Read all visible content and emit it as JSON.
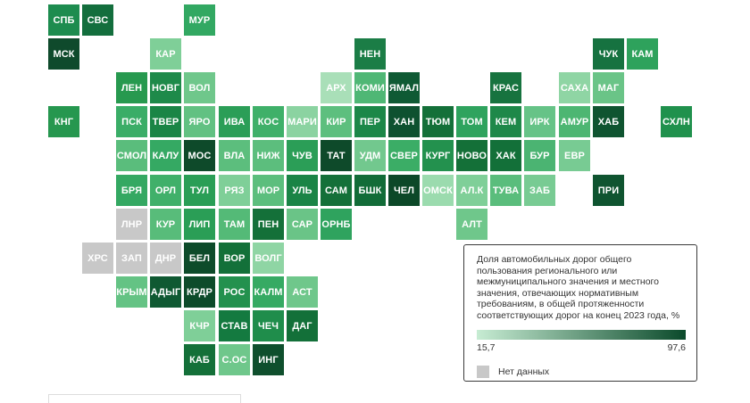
{
  "colors": {
    "scale_low": "#c7ecd3",
    "scale_high": "#0b4a2b",
    "no_data": "#c8c8c8",
    "text_on_tile": "#ffffff"
  },
  "legend": {
    "title": "Доля автомобильных дорог общего пользования регионального или межмуниципального значения и местного значения, отвечающих нормативным требованиям, в общей протяженности соответствующих дорог на конец 2023 года, %",
    "min_label": "15,7",
    "max_label": "97,6",
    "no_data_label": "Нет данных"
  },
  "regions": [
    {
      "label": "СПБ",
      "col": 0,
      "row": 0,
      "shade": "#1d8c4f"
    },
    {
      "label": "СВС",
      "col": 1,
      "row": 0,
      "shade": "#136e3d"
    },
    {
      "label": "МУР",
      "col": 4,
      "row": 0,
      "shade": "#32a862"
    },
    {
      "label": "МСК",
      "col": 0,
      "row": 1,
      "shade": "#0f4a2c"
    },
    {
      "label": "КАР",
      "col": 3,
      "row": 1,
      "shade": "#7fcf98"
    },
    {
      "label": "НЕН",
      "col": 9,
      "row": 1,
      "shade": "#1b7d46"
    },
    {
      "label": "ЧУК",
      "col": 16,
      "row": 1,
      "shade": "#167240"
    },
    {
      "label": "КАМ",
      "col": 17,
      "row": 1,
      "shade": "#2ea25c"
    },
    {
      "label": "ЛЕН",
      "col": 2,
      "row": 2,
      "shade": "#27994f"
    },
    {
      "label": "НОВГ",
      "col": 3,
      "row": 2,
      "shade": "#1e8a4a"
    },
    {
      "label": "ВОЛ",
      "col": 4,
      "row": 2,
      "shade": "#6fc78b"
    },
    {
      "label": "АРХ",
      "col": 8,
      "row": 2,
      "shade": "#a9dfb8"
    },
    {
      "label": "КОМИ",
      "col": 9,
      "row": 2,
      "shade": "#4fb775"
    },
    {
      "label": "ЯМАЛ",
      "col": 10,
      "row": 2,
      "shade": "#0f5a34"
    },
    {
      "label": "КРАС",
      "col": 13,
      "row": 2,
      "shade": "#17733f"
    },
    {
      "label": "САХА",
      "col": 15,
      "row": 2,
      "shade": "#8fd5a4"
    },
    {
      "label": "МАГ",
      "col": 16,
      "row": 2,
      "shade": "#6ac487"
    },
    {
      "label": "КНГ",
      "col": 0,
      "row": 3,
      "shade": "#26974f"
    },
    {
      "label": "ПСК",
      "col": 2,
      "row": 3,
      "shade": "#3aad67"
    },
    {
      "label": "ТВЕР",
      "col": 3,
      "row": 3,
      "shade": "#1a8546"
    },
    {
      "label": "ЯРО",
      "col": 4,
      "row": 3,
      "shade": "#62c182"
    },
    {
      "label": "ИВА",
      "col": 5,
      "row": 3,
      "shade": "#2b9e57"
    },
    {
      "label": "КОС",
      "col": 6,
      "row": 3,
      "shade": "#3fb069"
    },
    {
      "label": "МАРИ",
      "col": 7,
      "row": 3,
      "shade": "#8bd3a1"
    },
    {
      "label": "КИР",
      "col": 8,
      "row": 3,
      "shade": "#5dbf7e"
    },
    {
      "label": "ПЕР",
      "col": 9,
      "row": 3,
      "shade": "#1c8748"
    },
    {
      "label": "ХАН",
      "col": 10,
      "row": 3,
      "shade": "#0e5130"
    },
    {
      "label": "ТЮМ",
      "col": 11,
      "row": 3,
      "shade": "#147039"
    },
    {
      "label": "ТОМ",
      "col": 12,
      "row": 3,
      "shade": "#2fa35e"
    },
    {
      "label": "КЕМ",
      "col": 13,
      "row": 3,
      "shade": "#1e8849"
    },
    {
      "label": "ИРК",
      "col": 14,
      "row": 3,
      "shade": "#66c387"
    },
    {
      "label": "АМУР",
      "col": 15,
      "row": 3,
      "shade": "#4db672"
    },
    {
      "label": "ХАБ",
      "col": 16,
      "row": 3,
      "shade": "#0f5430"
    },
    {
      "label": "СХЛН",
      "col": 18,
      "row": 3,
      "shade": "#20914d"
    },
    {
      "label": "СМОЛ",
      "col": 2,
      "row": 4,
      "shade": "#5abd7c"
    },
    {
      "label": "КАЛУ",
      "col": 3,
      "row": 4,
      "shade": "#35a963"
    },
    {
      "label": "МОС",
      "col": 4,
      "row": 4,
      "shade": "#0e4a2a"
    },
    {
      "label": "ВЛА",
      "col": 5,
      "row": 4,
      "shade": "#5cbe7d"
    },
    {
      "label": "НИЖ",
      "col": 6,
      "row": 4,
      "shade": "#5cbe7d"
    },
    {
      "label": "ЧУВ",
      "col": 7,
      "row": 4,
      "shade": "#2b9e57"
    },
    {
      "label": "ТАТ",
      "col": 8,
      "row": 4,
      "shade": "#0e4a2a"
    },
    {
      "label": "УДМ",
      "col": 9,
      "row": 4,
      "shade": "#72c88e"
    },
    {
      "label": "СВЕР",
      "col": 10,
      "row": 4,
      "shade": "#3bad66"
    },
    {
      "label": "КУРГ",
      "col": 11,
      "row": 4,
      "shade": "#23914e"
    },
    {
      "label": "НОВО",
      "col": 12,
      "row": 4,
      "shade": "#147038"
    },
    {
      "label": "ХАК",
      "col": 13,
      "row": 4,
      "shade": "#137039"
    },
    {
      "label": "БУР",
      "col": 14,
      "row": 4,
      "shade": "#4bb472"
    },
    {
      "label": "ЕВР",
      "col": 15,
      "row": 4,
      "shade": "#78cb93"
    },
    {
      "label": "БРЯ",
      "col": 2,
      "row": 5,
      "shade": "#34a862"
    },
    {
      "label": "ОРЛ",
      "col": 3,
      "row": 5,
      "shade": "#40b06a"
    },
    {
      "label": "ТУЛ",
      "col": 4,
      "row": 5,
      "shade": "#2a9e56"
    },
    {
      "label": "РЯЗ",
      "col": 5,
      "row": 5,
      "shade": "#7fcf98"
    },
    {
      "label": "МОР",
      "col": 6,
      "row": 5,
      "shade": "#5cbe7d"
    },
    {
      "label": "УЛЬ",
      "col": 7,
      "row": 5,
      "shade": "#1a8446"
    },
    {
      "label": "САМ",
      "col": 8,
      "row": 5,
      "shade": "#147039"
    },
    {
      "label": "БШК",
      "col": 9,
      "row": 5,
      "shade": "#126c38"
    },
    {
      "label": "ЧЕЛ",
      "col": 10,
      "row": 5,
      "shade": "#0c4828"
    },
    {
      "label": "ОМСК",
      "col": 11,
      "row": 5,
      "shade": "#9bdbae"
    },
    {
      "label": "АЛ.К",
      "col": 12,
      "row": 5,
      "shade": "#7fcf98"
    },
    {
      "label": "ТУВА",
      "col": 13,
      "row": 5,
      "shade": "#5abd7c"
    },
    {
      "label": "ЗАБ",
      "col": 14,
      "row": 5,
      "shade": "#78cb93"
    },
    {
      "label": "ПРИ",
      "col": 16,
      "row": 5,
      "shade": "#0f5430"
    },
    {
      "label": "ЛНР",
      "col": 2,
      "row": 6,
      "shade": "#c8c8c8"
    },
    {
      "label": "КУР",
      "col": 3,
      "row": 6,
      "shade": "#58bc7a"
    },
    {
      "label": "ЛИП",
      "col": 4,
      "row": 6,
      "shade": "#2a9e56"
    },
    {
      "label": "ТАМ",
      "col": 5,
      "row": 6,
      "shade": "#54ba77"
    },
    {
      "label": "ПЕН",
      "col": 6,
      "row": 6,
      "shade": "#147039"
    },
    {
      "label": "САР",
      "col": 7,
      "row": 6,
      "shade": "#6ac487"
    },
    {
      "label": "ОРНБ",
      "col": 8,
      "row": 6,
      "shade": "#2fa35e"
    },
    {
      "label": "АЛТ",
      "col": 12,
      "row": 6,
      "shade": "#6fc78b"
    },
    {
      "label": "ХРС",
      "col": 1,
      "row": 7,
      "shade": "#c8c8c8"
    },
    {
      "label": "ЗАП",
      "col": 2,
      "row": 7,
      "shade": "#c8c8c8"
    },
    {
      "label": "ДНР",
      "col": 3,
      "row": 7,
      "shade": "#c8c8c8"
    },
    {
      "label": "БЕЛ",
      "col": 4,
      "row": 7,
      "shade": "#0d4b2a"
    },
    {
      "label": "ВОР",
      "col": 5,
      "row": 7,
      "shade": "#137039"
    },
    {
      "label": "ВОЛГ",
      "col": 6,
      "row": 7,
      "shade": "#8fd5a4"
    },
    {
      "label": "КРЫМ",
      "col": 2,
      "row": 8,
      "shade": "#64c384"
    },
    {
      "label": "АДЫГ",
      "col": 3,
      "row": 8,
      "shade": "#0f5932"
    },
    {
      "label": "КРДР",
      "col": 4,
      "row": 8,
      "shade": "#0d4b2a"
    },
    {
      "label": "РОС",
      "col": 5,
      "row": 8,
      "shade": "#23914e"
    },
    {
      "label": "КАЛМ",
      "col": 6,
      "row": 8,
      "shade": "#36aa63"
    },
    {
      "label": "АСТ",
      "col": 7,
      "row": 8,
      "shade": "#6fc78b"
    },
    {
      "label": "КЧР",
      "col": 4,
      "row": 9,
      "shade": "#7fcf98"
    },
    {
      "label": "СТАВ",
      "col": 5,
      "row": 9,
      "shade": "#147a40"
    },
    {
      "label": "ЧЕЧ",
      "col": 6,
      "row": 9,
      "shade": "#1f8d4b"
    },
    {
      "label": "ДАГ",
      "col": 7,
      "row": 9,
      "shade": "#137039"
    },
    {
      "label": "КАБ",
      "col": 4,
      "row": 10,
      "shade": "#147039"
    },
    {
      "label": "С.ОС",
      "col": 5,
      "row": 10,
      "shade": "#6fc78b"
    },
    {
      "label": "ИНГ",
      "col": 6,
      "row": 10,
      "shade": "#0f4f2d"
    }
  ]
}
